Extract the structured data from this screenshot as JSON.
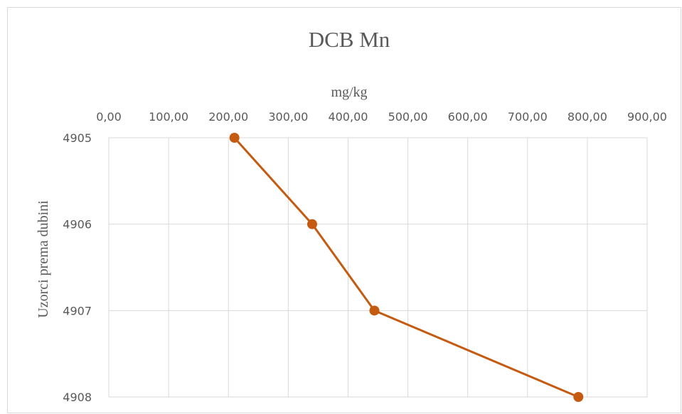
{
  "chart_data": {
    "type": "line",
    "title": "DCB Mn",
    "xlabel": "mg/kg",
    "ylabel": "Uzorci prema dubini",
    "x_axis_position": "top",
    "xlim": [
      0,
      900
    ],
    "x_ticks": [
      "0,00",
      "100,00",
      "200,00",
      "300,00",
      "400,00",
      "500,00",
      "600,00",
      "700,00",
      "800,00",
      "900,00"
    ],
    "y_categories": [
      "4905",
      "4906",
      "4907",
      "4908"
    ],
    "y_reversed": true,
    "grid": true,
    "legend": "none",
    "series": [
      {
        "color": "#c55a11",
        "points": [
          {
            "x": 210,
            "y": "4905"
          },
          {
            "x": 340,
            "y": "4906"
          },
          {
            "x": 444,
            "y": "4907"
          },
          {
            "x": 785,
            "y": "4908"
          }
        ]
      }
    ]
  }
}
